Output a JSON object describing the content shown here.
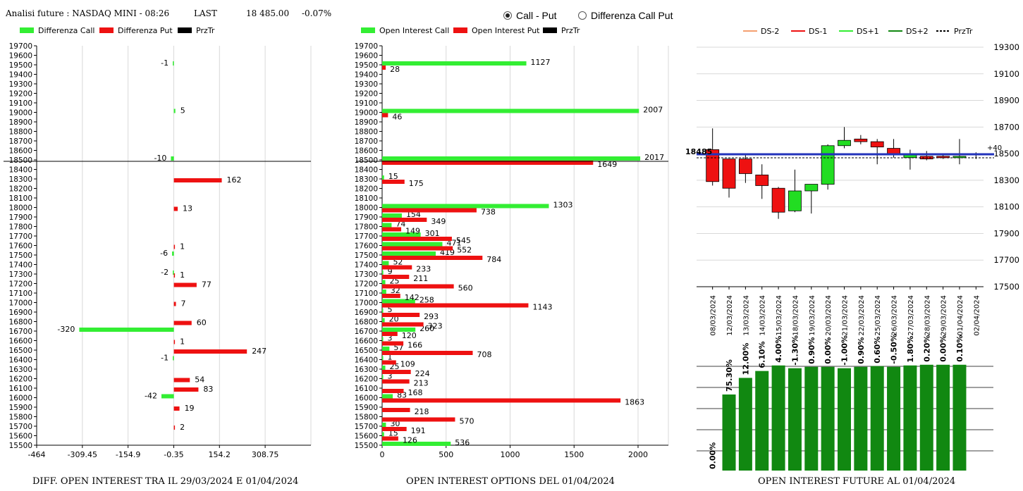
{
  "header": {
    "title": "Analisi future : NASDAQ MINI - 08:26",
    "last_label": "LAST",
    "last_value": "18 485.00",
    "change": "-0.07%"
  },
  "radio": {
    "option1": "Call - Put",
    "option2": "Differenza Call Put",
    "selected": 0
  },
  "colors": {
    "green": "#33ee33",
    "red": "#ee1111",
    "dark_green": "#118811",
    "blue": "#2233bb",
    "orange": "#f4a070",
    "candle_green": "#22dd22"
  },
  "captions": {
    "left": "DIFF. OPEN INTEREST TRA IL 29/03/2024 E 01/04/2024",
    "middle": "OPEN INTEREST OPTIONS DEL 01/04/2024",
    "right": "OPEN INTEREST FUTURE AL 01/04/2024"
  },
  "chart_data": [
    {
      "type": "bar",
      "orientation": "horizontal",
      "legend": [
        "Differenza Call",
        "Differenza Put",
        "PrzTr"
      ],
      "strikes": [
        "19700",
        "19600",
        "19500",
        "19400",
        "19300",
        "19200",
        "19100",
        "19000",
        "18900",
        "18800",
        "18700",
        "18600",
        "18500",
        "18400",
        "18300",
        "18200",
        "18100",
        "18000",
        "17900",
        "17800",
        "17700",
        "17600",
        "17500",
        "17400",
        "17300",
        "17200",
        "17100",
        "17000",
        "16900",
        "16800",
        "16700",
        "16600",
        "16500",
        "16400",
        "16300",
        "16200",
        "16100",
        "16000",
        "15900",
        "15800",
        "15700",
        "15600",
        "15500"
      ],
      "xlim": [
        -464,
        463.5
      ],
      "x_ticks": [
        "-464",
        "-309.45",
        "-154.9",
        "-0.35",
        "154.2",
        "308.75"
      ],
      "price_line": 18485,
      "series": [
        {
          "name": "Differenza Call",
          "points": [
            {
              "strike": "19500",
              "value": -1
            },
            {
              "strike": "19000",
              "value": 5
            },
            {
              "strike": "18500",
              "value": -10
            },
            {
              "strike": "17500",
              "value": -6
            },
            {
              "strike": "17300",
              "value": -2
            },
            {
              "strike": "16700",
              "value": -320
            },
            {
              "strike": "16400",
              "value": -1
            },
            {
              "strike": "16000",
              "value": -42
            }
          ]
        },
        {
          "name": "Differenza Put",
          "points": [
            {
              "strike": "18300",
              "value": 162
            },
            {
              "strike": "18000",
              "value": 13
            },
            {
              "strike": "17600",
              "value": 1
            },
            {
              "strike": "17300",
              "value": 1
            },
            {
              "strike": "17200",
              "value": 77
            },
            {
              "strike": "17000",
              "value": 7
            },
            {
              "strike": "16800",
              "value": 60
            },
            {
              "strike": "16600",
              "value": 1
            },
            {
              "strike": "16500",
              "value": 247
            },
            {
              "strike": "16200",
              "value": 54
            },
            {
              "strike": "16100",
              "value": 83
            },
            {
              "strike": "15900",
              "value": 19
            },
            {
              "strike": "15700",
              "value": 2
            }
          ]
        }
      ]
    },
    {
      "type": "bar",
      "orientation": "horizontal",
      "legend": [
        "Open Interest Call",
        "Open Interest Put",
        "PrzTr"
      ],
      "xlim": [
        0,
        2000
      ],
      "x_ticks": [
        "0",
        "500",
        "1000",
        "1500",
        "2000"
      ],
      "price_line": 18485,
      "call": [
        {
          "strike": "19500",
          "value": 1127
        },
        {
          "strike": "19000",
          "value": 2007
        },
        {
          "strike": "18500",
          "value": 2017
        },
        {
          "strike": "18300",
          "value": 15
        },
        {
          "strike": "18000",
          "value": 1303
        },
        {
          "strike": "17900",
          "value": 154
        },
        {
          "strike": "17800",
          "value": 74
        },
        {
          "strike": "17700",
          "value": 301
        },
        {
          "strike": "17600",
          "value": 471
        },
        {
          "strike": "17500",
          "value": 419
        },
        {
          "strike": "17400",
          "value": 52
        },
        {
          "strike": "17300",
          "value": 9
        },
        {
          "strike": "17200",
          "value": 25
        },
        {
          "strike": "17100",
          "value": 32
        },
        {
          "strike": "17000",
          "value": 258
        },
        {
          "strike": "16900",
          "value": 5
        },
        {
          "strike": "16800",
          "value": 20
        },
        {
          "strike": "16700",
          "value": 260
        },
        {
          "strike": "16600",
          "value": 3
        },
        {
          "strike": "16500",
          "value": 57
        },
        {
          "strike": "16400",
          "value": 1
        },
        {
          "strike": "16300",
          "value": 25
        },
        {
          "strike": "16200",
          "value": 3
        },
        {
          "strike": "16000",
          "value": 83
        },
        {
          "strike": "15700",
          "value": 30
        },
        {
          "strike": "15600",
          "value": 15
        },
        {
          "strike": "15500",
          "value": 536
        }
      ],
      "put": [
        {
          "strike": "19500",
          "value": 28
        },
        {
          "strike": "19000",
          "value": 46
        },
        {
          "strike": "18500",
          "value": 1649
        },
        {
          "strike": "18300",
          "value": 175
        },
        {
          "strike": "18000",
          "value": 738
        },
        {
          "strike": "17900",
          "value": 349
        },
        {
          "strike": "17800",
          "value": 149
        },
        {
          "strike": "17700",
          "value": 545
        },
        {
          "strike": "17600",
          "value": 552
        },
        {
          "strike": "17500",
          "value": 784
        },
        {
          "strike": "17400",
          "value": 233
        },
        {
          "strike": "17300",
          "value": 211
        },
        {
          "strike": "17200",
          "value": 560
        },
        {
          "strike": "17100",
          "value": 142
        },
        {
          "strike": "17000",
          "value": 1143
        },
        {
          "strike": "16900",
          "value": 293
        },
        {
          "strike": "16800",
          "value": 323
        },
        {
          "strike": "16700",
          "value": 120
        },
        {
          "strike": "16600",
          "value": 166
        },
        {
          "strike": "16500",
          "value": 708
        },
        {
          "strike": "16400",
          "value": 109
        },
        {
          "strike": "16300",
          "value": 224
        },
        {
          "strike": "16200",
          "value": 213
        },
        {
          "strike": "16100",
          "value": 168
        },
        {
          "strike": "16000",
          "value": 1863
        },
        {
          "strike": "15900",
          "value": 218
        },
        {
          "strike": "15800",
          "value": 570
        },
        {
          "strike": "15700",
          "value": 191
        },
        {
          "strike": "15600",
          "value": 126
        }
      ]
    },
    {
      "type": "candlestick",
      "legend": [
        "DS-2",
        "DS-1",
        "DS+1",
        "DS+2",
        "PrzTr"
      ],
      "y_ticks": [
        "19300",
        "19100",
        "18900",
        "18700",
        "18500",
        "18300",
        "18100",
        "17900",
        "17700",
        "17500"
      ],
      "ylim": [
        17500,
        19300
      ],
      "price_label": "18485",
      "delta_label": "+40",
      "price_line": 18485,
      "dates": [
        "08/03/2024",
        "12/03/2024",
        "13/03/2024",
        "14/03/2024",
        "15/03/2024",
        "18/03/2024",
        "19/03/2024",
        "20/03/2024",
        "21/03/2024",
        "22/03/2024",
        "25/03/2024",
        "26/03/2024",
        "27/03/2024",
        "28/03/2024",
        "29/03/2024",
        "01/04/2024",
        "02/04/2024"
      ],
      "candles": [
        {
          "open": 18530,
          "close": 18290,
          "high": 18690,
          "low": 18260
        },
        {
          "open": 18460,
          "close": 18240,
          "high": 18460,
          "low": 18170
        },
        {
          "open": 18460,
          "close": 18350,
          "high": 18500,
          "low": 18280
        },
        {
          "open": 18340,
          "close": 18260,
          "high": 18420,
          "low": 18160
        },
        {
          "open": 18240,
          "close": 18060,
          "high": 18250,
          "low": 18010
        },
        {
          "open": 18070,
          "close": 18220,
          "high": 18380,
          "low": 18060
        },
        {
          "open": 18220,
          "close": 18270,
          "high": 18270,
          "low": 18050
        },
        {
          "open": 18270,
          "close": 18560,
          "high": 18570,
          "low": 18230
        },
        {
          "open": 18560,
          "close": 18600,
          "high": 18700,
          "low": 18540
        },
        {
          "open": 18610,
          "close": 18590,
          "high": 18640,
          "low": 18570
        },
        {
          "open": 18590,
          "close": 18550,
          "high": 18610,
          "low": 18420
        },
        {
          "open": 18540,
          "close": 18490,
          "high": 18610,
          "low": 18470
        },
        {
          "open": 18470,
          "close": 18490,
          "high": 18530,
          "low": 18380
        },
        {
          "open": 18480,
          "close": 18460,
          "high": 18520,
          "low": 18450
        },
        {
          "open": 18480,
          "close": 18470,
          "high": 18490,
          "low": 18460
        },
        {
          "open": 18480,
          "close": 18480,
          "high": 18610,
          "low": 18420
        },
        {
          "open": 18500,
          "close": 18490,
          "high": 18510,
          "low": 18460
        }
      ]
    },
    {
      "type": "bar",
      "categories": [
        "08/03/2024",
        "12/03/2024",
        "13/03/2024",
        "14/03/2024",
        "15/03/2024",
        "18/03/2024",
        "19/03/2024",
        "20/03/2024",
        "21/03/2024",
        "22/03/2024",
        "25/03/2024",
        "26/03/2024",
        "27/03/2024",
        "28/03/2024",
        "29/03/2024",
        "01/04/2024",
        "02/04/2024"
      ],
      "labels": [
        "0.00%",
        "75.30%",
        "12.00%",
        "6.10%",
        "4.00%",
        "-1.30%",
        "0.90%",
        "0.00%",
        "-1.00%",
        "0.90%",
        "0.60%",
        "-0.50%",
        "1.80%",
        "0.20%",
        "0.00%",
        "0.10%",
        ""
      ],
      "values": [
        0,
        0.55,
        0.67,
        0.72,
        0.76,
        0.74,
        0.75,
        0.75,
        0.74,
        0.75,
        0.755,
        0.75,
        0.76,
        0.765,
        0.765,
        0.765,
        0
      ]
    }
  ]
}
